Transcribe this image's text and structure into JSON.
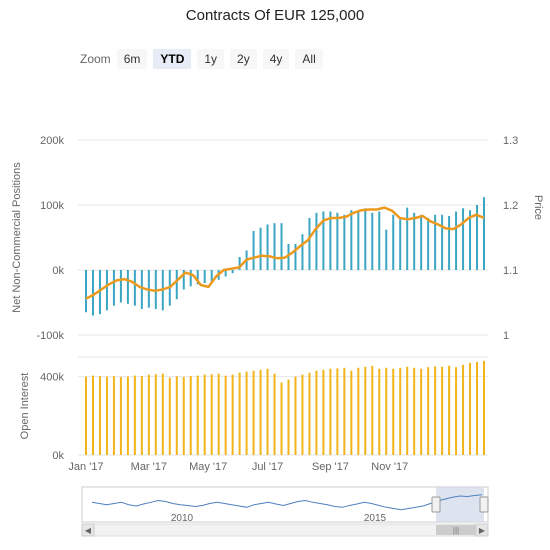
{
  "title": "Contracts Of EUR 125,000",
  "zoom": {
    "label": "Zoom",
    "buttons": [
      "6m",
      "YTD",
      "1y",
      "2y",
      "4y",
      "All"
    ],
    "selected": "YTD"
  },
  "colors": {
    "positions_bars": "#3aa6c3",
    "price_line": "#ec9a1e",
    "open_interest_bars": "#f2b418",
    "grid": "#e6e6e6",
    "navigator_line": "#4f7fc0"
  },
  "chart_data": [
    {
      "type": "bar",
      "title": "Contracts Of EUR 125,000",
      "ylabel": "Net Non-Commercial Positions",
      "ylim": [
        -100000,
        200000
      ],
      "y_ticks": [
        "-100k",
        "0k",
        "100k",
        "200k"
      ],
      "y_tick_values": [
        -100000,
        0,
        100000,
        200000
      ],
      "grid": true,
      "series": [
        {
          "name": "Net Non-Commercial Positions",
          "values": [
            -65000,
            -70000,
            -68000,
            -62000,
            -55000,
            -50000,
            -52000,
            -55000,
            -60000,
            -58000,
            -60000,
            -62000,
            -55000,
            -45000,
            -30000,
            -25000,
            -22000,
            -20000,
            -18000,
            -15000,
            -10000,
            -5000,
            20000,
            30000,
            60000,
            65000,
            70000,
            72000,
            72000,
            40000,
            40000,
            55000,
            80000,
            88000,
            90000,
            90000,
            88000,
            85000,
            92000,
            90000,
            95000,
            88000,
            90000,
            62000,
            85000,
            78000,
            96000,
            88000,
            85000,
            80000,
            85000,
            85000,
            83000,
            90000,
            95000,
            92000,
            100000,
            112000
          ]
        }
      ],
      "secondary_axis": {
        "label": "Price",
        "ylim": [
          1.0,
          1.3
        ],
        "ticks": [
          "1",
          "1.1",
          "1.2",
          "1.3"
        ],
        "tick_values": [
          1.0,
          1.1,
          1.2,
          1.3
        ]
      },
      "line_series": {
        "name": "Price",
        "axis": "secondary",
        "values": [
          1.056,
          1.062,
          1.07,
          1.078,
          1.084,
          1.086,
          1.082,
          1.074,
          1.07,
          1.068,
          1.07,
          1.074,
          1.085,
          1.096,
          1.092,
          1.077,
          1.074,
          1.09,
          1.1,
          1.102,
          1.104,
          1.116,
          1.119,
          1.122,
          1.121,
          1.118,
          1.119,
          1.127,
          1.137,
          1.146,
          1.163,
          1.176,
          1.18,
          1.18,
          1.182,
          1.188,
          1.192,
          1.193,
          1.193,
          1.196,
          1.191,
          1.18,
          1.178,
          1.18,
          1.183,
          1.175,
          1.17,
          1.164,
          1.163,
          1.17,
          1.18,
          1.185,
          1.18
        ],
        "line_x_start": 0,
        "line_x_end": 57
      },
      "x_ticks": [
        "Jan '17",
        "Mar '17",
        "May '17",
        "Jul '17",
        "Sep '17",
        "Nov '17"
      ],
      "x_tick_index": [
        0,
        9,
        17.5,
        26,
        35,
        43.5
      ]
    },
    {
      "type": "bar",
      "ylabel": "Open Interest",
      "ylim": [
        0,
        500000
      ],
      "y_ticks": [
        "0k",
        "400k"
      ],
      "y_tick_values": [
        0,
        400000
      ],
      "series": [
        {
          "name": "Open Interest",
          "values": [
            400000,
            405000,
            402000,
            400000,
            402000,
            398000,
            400000,
            405000,
            403000,
            410000,
            412000,
            415000,
            395000,
            402000,
            398000,
            403000,
            405000,
            410000,
            412000,
            415000,
            405000,
            410000,
            420000,
            425000,
            430000,
            435000,
            440000,
            415000,
            370000,
            385000,
            400000,
            410000,
            420000,
            430000,
            435000,
            440000,
            442000,
            445000,
            430000,
            445000,
            450000,
            455000,
            440000,
            445000,
            440000,
            445000,
            450000,
            445000,
            440000,
            448000,
            452000,
            450000,
            455000,
            448000,
            460000,
            470000,
            475000,
            480000
          ]
        }
      ]
    },
    {
      "type": "line",
      "title": "navigator",
      "x_ticks": [
        "2010",
        "2015"
      ],
      "values": [
        0.55,
        0.5,
        0.45,
        0.5,
        0.55,
        0.45,
        0.4,
        0.48,
        0.55,
        0.62,
        0.58,
        0.5,
        0.45,
        0.42,
        0.38,
        0.42,
        0.5,
        0.55,
        0.5,
        0.45,
        0.4,
        0.35,
        0.45,
        0.5,
        0.55,
        0.48,
        0.42,
        0.5,
        0.58,
        0.62,
        0.55,
        0.5,
        0.45,
        0.38,
        0.35,
        0.42,
        0.48,
        0.55,
        0.5,
        0.42,
        0.35,
        0.3,
        0.25,
        0.3,
        0.35,
        0.4,
        0.5,
        0.6,
        0.68,
        0.75,
        0.8,
        0.78,
        0.82,
        0.85
      ]
    }
  ]
}
